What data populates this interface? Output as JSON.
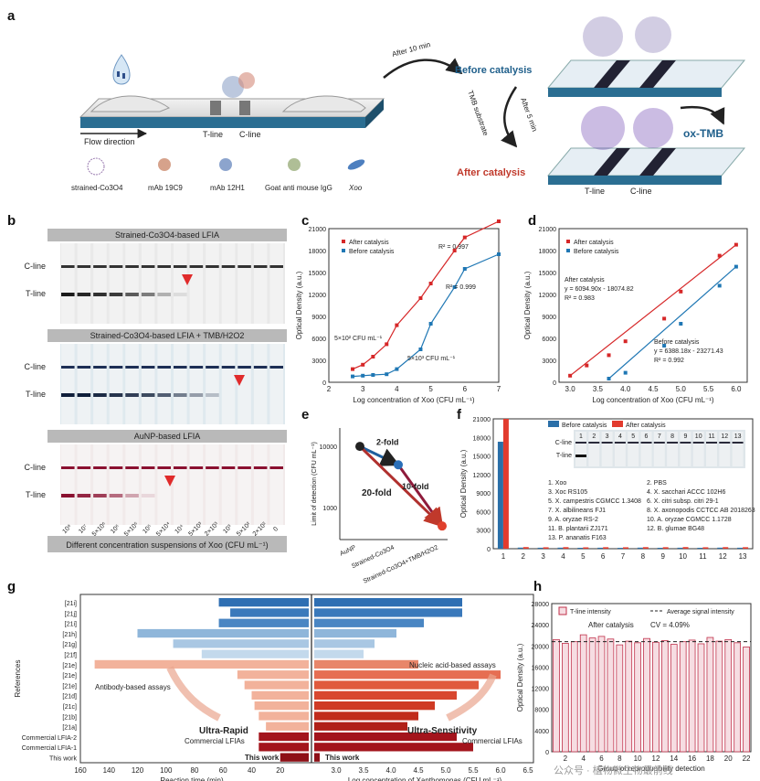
{
  "panel_a": {
    "label": "a",
    "flow_direction": "Flow direction",
    "t_line": "T-line",
    "c_line": "C-line",
    "after_10": "After 10 min",
    "before_catalysis": "Before catalysis",
    "tmb_substrate": "TMB substrate",
    "after_5": "After 5 min",
    "after_catalysis": "After catalysis",
    "ox_tmb": "ox-TMB",
    "legend": [
      "strained-Co3O4",
      "mAb 19C9",
      "mAb 12H1",
      "Goat anti mouse IgG",
      "Xoo"
    ],
    "colors": {
      "strip": "#2b6e92",
      "arrow": "#333333",
      "red": "#c0392b",
      "blue": "#1f5f8b"
    }
  },
  "panel_b": {
    "label": "b",
    "titles": [
      "Strained-Co3O4-based LFIA",
      "Strained-Co3O4-based LFIA + TMB/H2O2",
      "AuNP-based LFIA"
    ],
    "c_line": "C-line",
    "t_line": "T-line",
    "x_ticks": [
      "10⁸",
      "10⁷",
      "5×10⁶",
      "10⁶",
      "5×10⁵",
      "10⁵",
      "5×10⁴",
      "10⁴",
      "5×10³",
      "2×10³",
      "10³",
      "5×10²",
      "2×10²",
      "0"
    ],
    "footer": "Different concentration suspensions of Xoo (CFU mL⁻¹)",
    "t_intensity": [
      [
        1,
        0.95,
        0.9,
        0.85,
        0.7,
        0.55,
        0.3,
        0.1,
        0,
        0,
        0,
        0,
        0,
        0
      ],
      [
        1,
        1,
        0.95,
        0.9,
        0.85,
        0.8,
        0.7,
        0.55,
        0.4,
        0.25,
        0,
        0,
        0,
        0
      ],
      [
        1,
        0.9,
        0.8,
        0.6,
        0.35,
        0.12,
        0,
        0,
        0,
        0,
        0,
        0,
        0,
        0
      ]
    ]
  },
  "chart_data": [
    {
      "panel": "c",
      "type": "line",
      "xlabel": "Log concentration of Xoo (CFU mL⁻¹)",
      "ylabel": "Optical Density (a.u.)",
      "xlim": [
        2,
        7
      ],
      "ylim": [
        0,
        21000
      ],
      "x_ticks": [
        2,
        3,
        4,
        5,
        6,
        7
      ],
      "y_ticks": [
        0,
        3000,
        6000,
        9000,
        12000,
        15000,
        18000,
        21000
      ],
      "series": [
        {
          "name": "After catalysis",
          "color": "#d62728",
          "x": [
            2.7,
            3.0,
            3.3,
            3.7,
            4.0,
            4.7,
            5.0,
            5.7,
            6.0,
            7.0
          ],
          "y": [
            1800,
            2400,
            3500,
            5200,
            7800,
            11500,
            13500,
            18000,
            19800,
            22000
          ]
        },
        {
          "name": "Before catalysis",
          "color": "#1f77b4",
          "x": [
            2.7,
            3.0,
            3.3,
            3.7,
            4.0,
            4.7,
            5.0,
            5.7,
            6.0,
            7.0
          ],
          "y": [
            800,
            900,
            1000,
            1100,
            1800,
            4500,
            8000,
            13000,
            15500,
            17500
          ]
        }
      ],
      "annotations": [
        "R² = 0.997",
        "R² = 0.999",
        "5×10² CFU mL⁻¹",
        "5×10³ CFU mL⁻¹"
      ]
    },
    {
      "panel": "d",
      "type": "scatter",
      "xlabel": "Log concentration of Xoo (CFU mL⁻¹)",
      "ylabel": "Optical Density (a.u.)",
      "xlim": [
        2.8,
        6.2
      ],
      "ylim": [
        0,
        21000
      ],
      "x_ticks": [
        3.0,
        3.5,
        4.0,
        4.5,
        5.0,
        5.5,
        6.0
      ],
      "y_ticks": [
        0,
        3000,
        6000,
        9000,
        12000,
        15000,
        18000,
        21000
      ],
      "series": [
        {
          "name": "After catalysis",
          "color": "#d62728",
          "x": [
            3.0,
            3.3,
            3.7,
            4.0,
            4.7,
            5.0,
            5.7,
            6.0
          ],
          "y": [
            900,
            2300,
            3700,
            5600,
            8700,
            12400,
            17300,
            18800
          ]
        },
        {
          "name": "Before catalysis",
          "color": "#1f77b4",
          "x": [
            3.7,
            4.0,
            4.7,
            5.0,
            5.7,
            6.0
          ],
          "y": [
            500,
            1300,
            5000,
            8000,
            13200,
            15800
          ]
        }
      ],
      "annotations": [
        "After catalysis",
        "y = 6094.90x - 18074.82",
        "R² = 0.983",
        "Before catalysis",
        "y = 6388.18x - 23271.43",
        "R² = 0.992"
      ]
    },
    {
      "panel": "e",
      "type": "line",
      "ylabel": "Limit of detection (CFU mL⁻¹)",
      "categories": [
        "AuNP",
        "Strained-Co3O4",
        "Strained-Co3O4+TMB/H2O2"
      ],
      "values": [
        10000,
        5000,
        500
      ],
      "y_ticks": [
        1000,
        10000
      ],
      "annotations": [
        "2-fold",
        "10-fold",
        "20-fold"
      ]
    },
    {
      "panel": "f",
      "type": "bar",
      "ylabel": "Optical Density (a.u.)",
      "categories": [
        "1",
        "2",
        "3",
        "4",
        "5",
        "6",
        "7",
        "8",
        "9",
        "10",
        "11",
        "12",
        "13"
      ],
      "ylim": [
        0,
        21000
      ],
      "y_ticks": [
        0,
        3000,
        6000,
        9000,
        12000,
        15000,
        18000,
        21000
      ],
      "series": [
        {
          "name": "Before catalysis",
          "color": "#2a6fa8",
          "values": [
            17300,
            180,
            160,
            170,
            150,
            160,
            140,
            170,
            150,
            160,
            150,
            170,
            160
          ]
        },
        {
          "name": "After catalysis",
          "color": "#e23b2e",
          "values": [
            21000,
            260,
            230,
            250,
            220,
            240,
            230,
            250,
            240,
            260,
            230,
            250,
            240
          ]
        }
      ],
      "strain_list": [
        "1. Xoo",
        "2. PBS",
        "3. Xoc RS105",
        "4. X. sacchari ACCC 102H6",
        "5. X. campestris CGMCC 1.3408",
        "6. X. citri subsp. citri 29-1",
        "7. X. albilineans FJ1",
        "8. X. axonopodis CCTCC AB 2018263",
        "9. A. oryzae RS-2",
        "10. A. oryzae CGMCC 1.1728",
        "11. B. plantarii ZJ171",
        "12. B. glumae BG48",
        "13. P. ananatis F163"
      ],
      "inset_labels": [
        "C-line",
        "T-line"
      ]
    },
    {
      "panel": "h",
      "type": "bar",
      "xlabel": "Group of reproducibility detection",
      "ylabel": "Optical Density (a.u.)",
      "ylim": [
        0,
        28000
      ],
      "y_ticks": [
        0,
        4000,
        8000,
        12000,
        16000,
        20000,
        24000,
        28000
      ],
      "x_ticks": [
        2,
        4,
        6,
        8,
        10,
        12,
        14,
        16,
        18,
        20,
        22
      ],
      "series": [
        {
          "name": "T-line intensity",
          "color": "#c0304a",
          "values": [
            21200,
            20500,
            20800,
            22100,
            21500,
            21800,
            21300,
            20200,
            20900,
            20600,
            21400,
            20700,
            21000,
            20300,
            20800,
            21100,
            20400,
            21600,
            20900,
            21200,
            20600,
            19800
          ]
        }
      ],
      "average": 20800,
      "legend": [
        "T-line intensity",
        "Average signal intensity"
      ],
      "annotations": [
        "After catalysis",
        "CV = 4.09%"
      ]
    }
  ],
  "panel_g": {
    "label": "g",
    "references": [
      "[21i]",
      "[21j]",
      "[21i]",
      "[21h]",
      "[21g]",
      "[21f]",
      "[21e]",
      "[21e]",
      "[21e]",
      "[21d]",
      "[21c]",
      "[21b]",
      "[21a]",
      "Commercial LFIA-2",
      "Commercial LFIA-1",
      "This work"
    ],
    "ylabel": "References",
    "xlabel_left": "Reaction time (min)",
    "xlabel_right": "Log concentration of Xanthomonas (CFU mL⁻¹)",
    "left_ticks": [
      "160",
      "140",
      "120",
      "100",
      "80",
      "60",
      "40",
      "20"
    ],
    "right_ticks": [
      "3.0",
      "3.5",
      "4.0",
      "4.5",
      "5.0",
      "5.5",
      "6.0",
      "6.5"
    ],
    "labels": [
      "Nucleic acid-based assays",
      "Antibody-based assays",
      "Ultra-Rapid",
      "Ultra-Sensitivity",
      "Commercial LFIAs",
      "Commercial LFIAs",
      "This work",
      "This work"
    ],
    "time_min": [
      63,
      55,
      63,
      120,
      95,
      75,
      150,
      50,
      45,
      40,
      38,
      35,
      30,
      35,
      35,
      20
    ],
    "log_conc": [
      5.3,
      5.3,
      4.6,
      4.1,
      3.7,
      3.5,
      4.5,
      6.0,
      5.6,
      5.2,
      4.8,
      4.5,
      4.3,
      5.2,
      5.5,
      2.7
    ]
  },
  "watermark": "公众号 · 植物微生物最前线"
}
